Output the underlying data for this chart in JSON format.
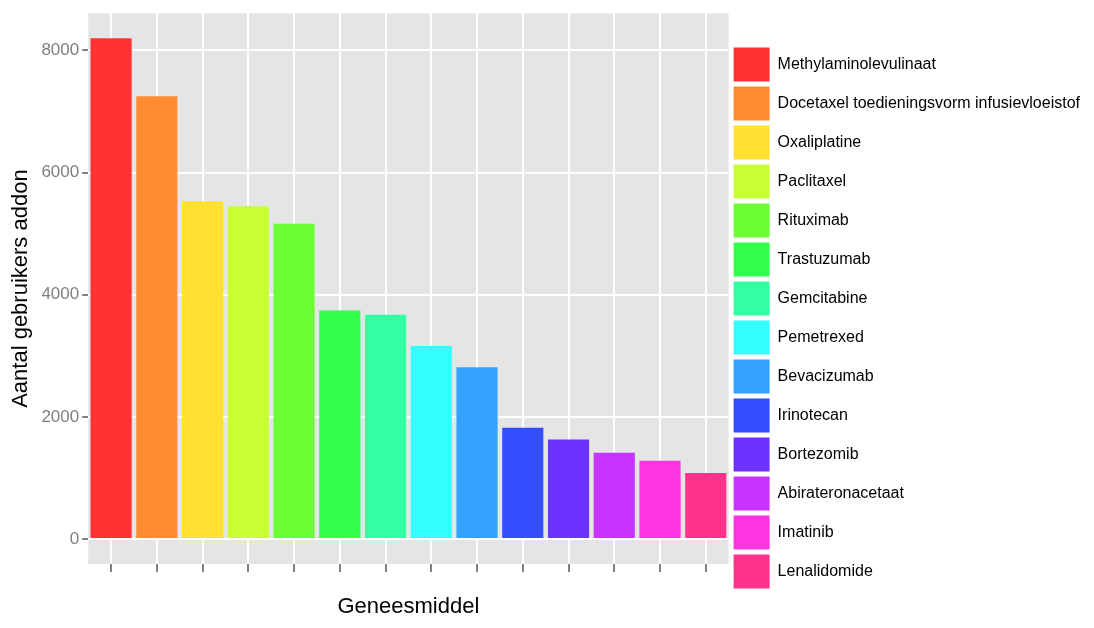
{
  "chart_data": {
    "type": "bar",
    "xlabel": "Geneesmiddel",
    "ylabel": "Aantal gebruikers addon",
    "categories": [
      null,
      null,
      null,
      null,
      null,
      null,
      null,
      null,
      null,
      null,
      null,
      null,
      null,
      null
    ],
    "ylim": [
      -410,
      8610
    ],
    "yticks": [
      0,
      2000,
      4000,
      6000,
      8000
    ],
    "grid": true,
    "legend": "right",
    "tick_labels": "y",
    "series": [
      {
        "name": "Methylaminolevulinaat",
        "color": "#ff3333",
        "values": [
          8200,
          null,
          null,
          null,
          null,
          null,
          null,
          null,
          null,
          null,
          null,
          null,
          null,
          null
        ]
      },
      {
        "name": "Docetaxel toedieningsvorm infusievloeistof",
        "color": "#ff8c33",
        "values": [
          null,
          7250,
          null,
          null,
          null,
          null,
          null,
          null,
          null,
          null,
          null,
          null,
          null,
          null
        ]
      },
      {
        "name": "Oxaliplatine",
        "color": "#ffe033",
        "values": [
          null,
          null,
          5530,
          null,
          null,
          null,
          null,
          null,
          null,
          null,
          null,
          null,
          null,
          null
        ]
      },
      {
        "name": "Paclitaxel",
        "color": "#c8ff33",
        "values": [
          null,
          null,
          null,
          5450,
          null,
          null,
          null,
          null,
          null,
          null,
          null,
          null,
          null,
          null
        ]
      },
      {
        "name": "Rituximab",
        "color": "#6cff33",
        "values": [
          null,
          null,
          null,
          null,
          5160,
          null,
          null,
          null,
          null,
          null,
          null,
          null,
          null,
          null
        ]
      },
      {
        "name": "Trastuzumab",
        "color": "#33ff4d",
        "values": [
          null,
          null,
          null,
          null,
          null,
          3740,
          null,
          null,
          null,
          null,
          null,
          null,
          null,
          null
        ]
      },
      {
        "name": "Gemcitabine",
        "color": "#33ffa3",
        "values": [
          null,
          null,
          null,
          null,
          null,
          null,
          3670,
          null,
          null,
          null,
          null,
          null,
          null,
          null
        ]
      },
      {
        "name": "Pemetrexed",
        "color": "#33ffff",
        "values": [
          null,
          null,
          null,
          null,
          null,
          null,
          null,
          3160,
          null,
          null,
          null,
          null,
          null,
          null
        ]
      },
      {
        "name": "Bevacizumab",
        "color": "#33a3ff",
        "values": [
          null,
          null,
          null,
          null,
          null,
          null,
          null,
          null,
          2810,
          null,
          null,
          null,
          null,
          null
        ]
      },
      {
        "name": "Irinotecan",
        "color": "#334dff",
        "values": [
          null,
          null,
          null,
          null,
          null,
          null,
          null,
          null,
          null,
          1820,
          null,
          null,
          null,
          null
        ]
      },
      {
        "name": "Bortezomib",
        "color": "#6c33ff",
        "values": [
          null,
          null,
          null,
          null,
          null,
          null,
          null,
          null,
          null,
          null,
          1630,
          null,
          null,
          null
        ]
      },
      {
        "name": "Abirateronacetaat",
        "color": "#c833ff",
        "values": [
          null,
          null,
          null,
          null,
          null,
          null,
          null,
          null,
          null,
          null,
          null,
          1410,
          null,
          null
        ]
      },
      {
        "name": "Imatinib",
        "color": "#ff33e0",
        "values": [
          null,
          null,
          null,
          null,
          null,
          null,
          null,
          null,
          null,
          null,
          null,
          null,
          1280,
          null
        ]
      },
      {
        "name": "Lenalidomide",
        "color": "#ff338c",
        "values": [
          null,
          null,
          null,
          null,
          null,
          null,
          null,
          null,
          null,
          null,
          null,
          null,
          null,
          1080
        ]
      }
    ]
  }
}
